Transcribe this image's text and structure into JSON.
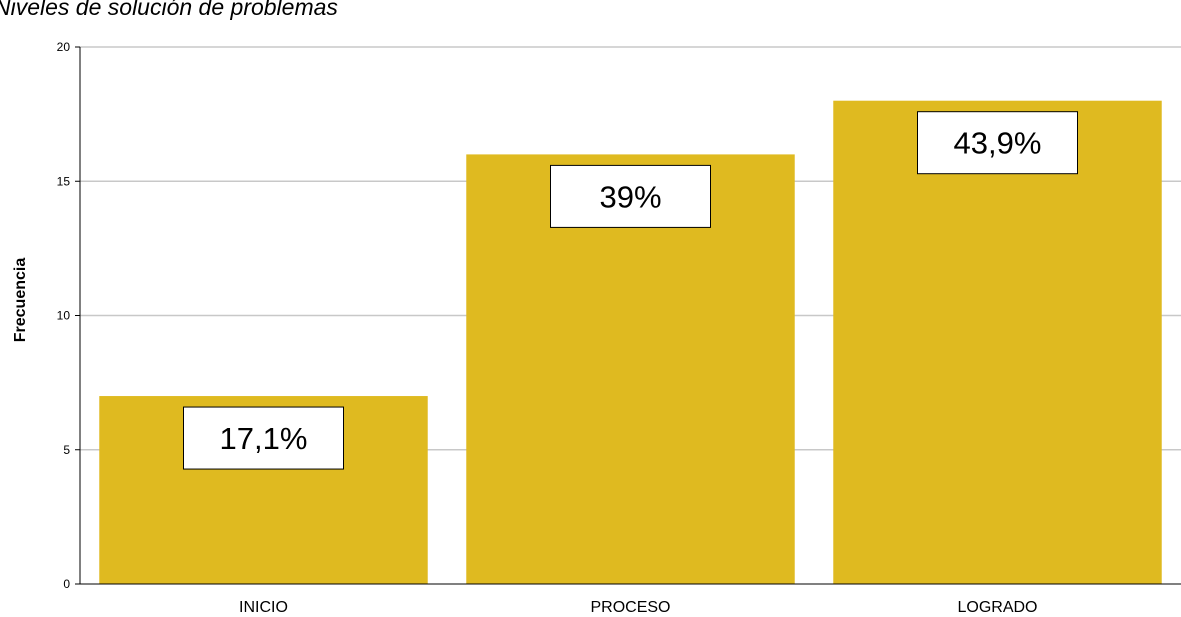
{
  "chart_data": {
    "type": "bar",
    "title": "Niveles de solución de problemas",
    "xlabel": "",
    "ylabel": "Frecuencia",
    "categories": [
      "INICIO",
      "PROCESO",
      "LOGRADO"
    ],
    "values": [
      7,
      16,
      18
    ],
    "data_labels": [
      "17,1%",
      "39%",
      "43,9%"
    ],
    "ylim": [
      0,
      20
    ],
    "yticks": [
      0,
      5,
      10,
      15,
      20
    ],
    "grid": true,
    "colors": {
      "bar": "#DFBA20",
      "grid": "#C8C8C8",
      "axis": "#000000"
    }
  }
}
